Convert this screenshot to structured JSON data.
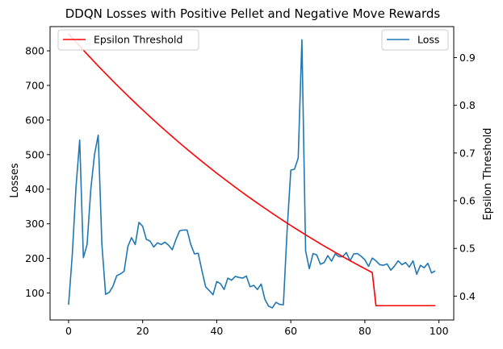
{
  "chart_data": {
    "type": "line",
    "title": "DDQN Losses with Positive Pellet and Negative Move Rewards",
    "xlabel": "",
    "ylabel": "Losses",
    "y2label": "Epsilon Threshold",
    "xlim": [
      -5,
      104
    ],
    "ylim": [
      22,
      870
    ],
    "y2lim": [
      0.35,
      0.965
    ],
    "xticks": [
      0,
      20,
      40,
      60,
      80,
      100
    ],
    "yticks": [
      100,
      200,
      300,
      400,
      500,
      600,
      700,
      800
    ],
    "y2ticks": [
      0.4,
      0.5,
      0.6,
      0.7,
      0.8,
      0.9
    ],
    "grid": false,
    "legend_left": {
      "placement": "upper-left",
      "entries": [
        "Epsilon Threshold"
      ]
    },
    "legend_right": {
      "placement": "upper-right",
      "entries": [
        "Loss"
      ]
    },
    "colors": {
      "loss": "#1f77b4",
      "epsilon": "#ff0000"
    },
    "series": [
      {
        "name": "Loss",
        "axis": "left",
        "x": [
          0,
          1,
          2,
          3,
          4,
          5,
          6,
          7,
          8,
          9,
          10,
          11,
          12,
          13,
          14,
          15,
          16,
          17,
          18,
          19,
          20,
          21,
          22,
          23,
          24,
          25,
          26,
          27,
          28,
          29,
          30,
          31,
          32,
          33,
          34,
          35,
          36,
          37,
          38,
          39,
          40,
          41,
          42,
          43,
          44,
          45,
          46,
          47,
          48,
          49,
          50,
          51,
          52,
          53,
          54,
          55,
          56,
          57,
          58,
          59,
          60,
          61,
          62,
          63,
          64,
          65,
          66,
          67,
          68,
          69,
          70,
          71,
          72,
          73,
          74,
          75,
          76,
          77,
          78,
          79,
          80,
          81,
          82,
          83,
          84,
          85,
          86,
          87,
          88,
          89,
          90,
          91,
          92,
          93,
          94,
          95,
          96,
          97,
          98,
          99
        ],
        "values": [
          66,
          210,
          405,
          542,
          202,
          240,
          400,
          500,
          556,
          240,
          96,
          102,
          120,
          150,
          155,
          163,
          234,
          260,
          240,
          304,
          293,
          255,
          250,
          233,
          245,
          240,
          247,
          238,
          225,
          255,
          280,
          282,
          282,
          240,
          213,
          215,
          165,
          118,
          107,
          95,
          133,
          127,
          110,
          143,
          137,
          148,
          145,
          143,
          149,
          118,
          122,
          110,
          126,
          82,
          62,
          57,
          73,
          67,
          66,
          280,
          455,
          458,
          490,
          832,
          222,
          170,
          214,
          210,
          183,
          188,
          208,
          192,
          213,
          205,
          205,
          217,
          193,
          213,
          214,
          206,
          196,
          177,
          201,
          193,
          182,
          180,
          184,
          166,
          178,
          193,
          182,
          188,
          175,
          193,
          154,
          180,
          173,
          186,
          158,
          164
        ]
      },
      {
        "name": "Epsilon Threshold",
        "axis": "right",
        "x": [
          0,
          1,
          2,
          3,
          4,
          5,
          6,
          7,
          8,
          9,
          10,
          11,
          12,
          13,
          14,
          15,
          16,
          17,
          18,
          19,
          20,
          21,
          22,
          23,
          24,
          25,
          26,
          27,
          28,
          29,
          30,
          31,
          32,
          33,
          34,
          35,
          36,
          37,
          38,
          39,
          40,
          41,
          42,
          43,
          44,
          45,
          46,
          47,
          48,
          49,
          50,
          51,
          52,
          53,
          54,
          55,
          56,
          57,
          58,
          59,
          60,
          61,
          62,
          63,
          64,
          65,
          66,
          67,
          68,
          69,
          70,
          71,
          72,
          73,
          74,
          75,
          76,
          77,
          78,
          79,
          80,
          81,
          82,
          83,
          84,
          85,
          86,
          87,
          88,
          89,
          90,
          91,
          92,
          93,
          94,
          95,
          96,
          97,
          98,
          99
        ],
        "values": [
          0.95,
          0.9413,
          0.9327,
          0.9241,
          0.9157,
          0.9073,
          0.899,
          0.8908,
          0.8826,
          0.8745,
          0.8665,
          0.8586,
          0.8507,
          0.8429,
          0.8352,
          0.8276,
          0.82,
          0.8125,
          0.8051,
          0.7977,
          0.7904,
          0.7832,
          0.776,
          0.7689,
          0.7619,
          0.7549,
          0.748,
          0.7412,
          0.7344,
          0.7277,
          0.721,
          0.7144,
          0.7079,
          0.7014,
          0.695,
          0.6887,
          0.6824,
          0.6762,
          0.67,
          0.6639,
          0.6578,
          0.6518,
          0.6459,
          0.64,
          0.6342,
          0.6284,
          0.6227,
          0.617,
          0.6114,
          0.6059,
          0.6004,
          0.5949,
          0.5895,
          0.5842,
          0.5789,
          0.5736,
          0.5684,
          0.5633,
          0.5582,
          0.5531,
          0.5481,
          0.5432,
          0.5383,
          0.5334,
          0.5286,
          0.5238,
          0.5191,
          0.5144,
          0.5098,
          0.5052,
          0.5007,
          0.4962,
          0.4917,
          0.4873,
          0.4829,
          0.4786,
          0.4743,
          0.47,
          0.4658,
          0.4617,
          0.4576,
          0.4535,
          0.4495,
          0.38,
          0.38,
          0.38,
          0.38,
          0.38,
          0.38,
          0.38,
          0.38,
          0.38,
          0.38,
          0.38,
          0.38,
          0.38,
          0.38,
          0.38,
          0.38,
          0.38
        ]
      }
    ]
  }
}
